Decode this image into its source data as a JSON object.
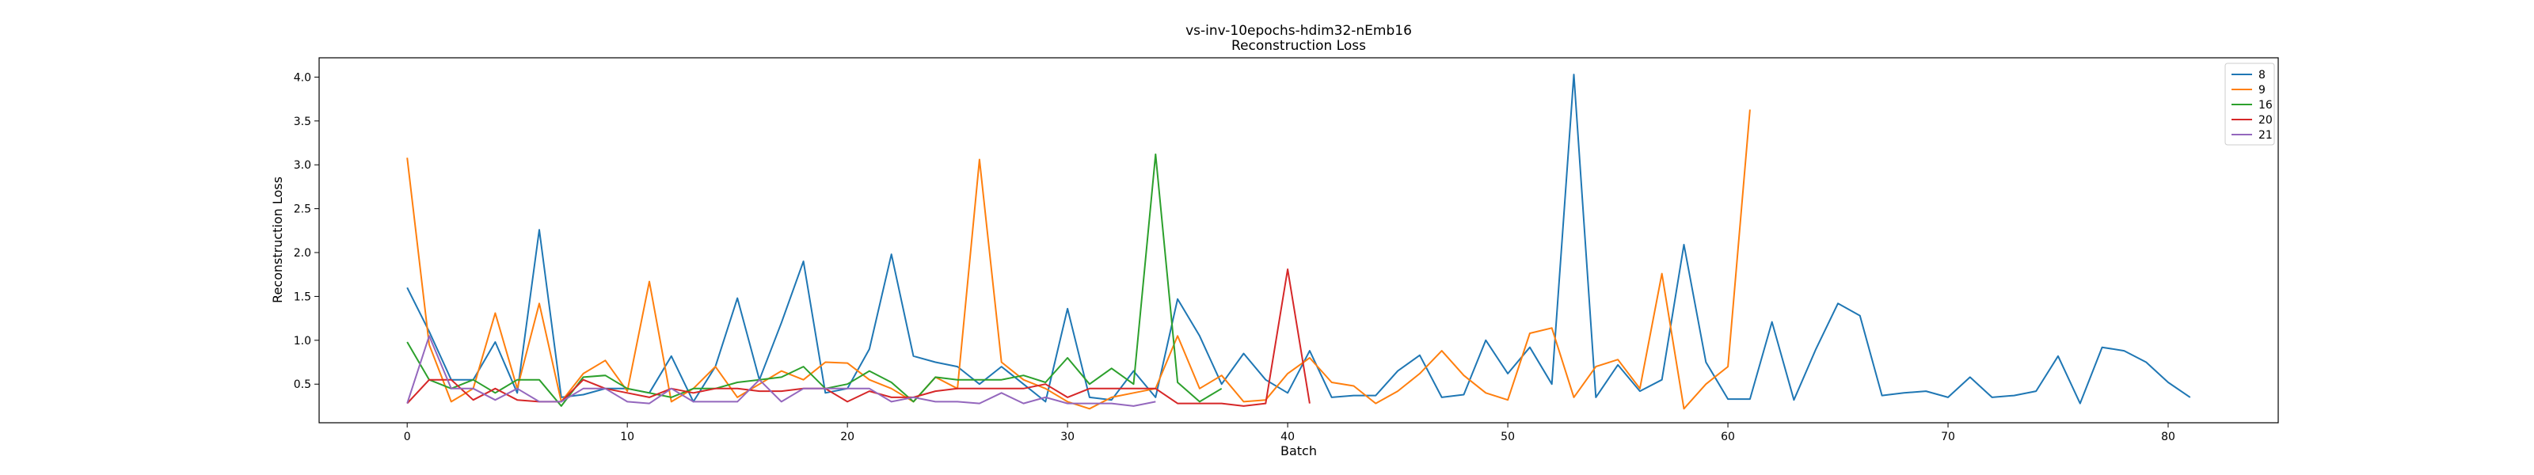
{
  "chart_data": {
    "type": "line",
    "title": "vs-inv-10epochs-hdim32-nEmb16",
    "subtitle": "Reconstruction Loss",
    "xlabel": "Batch",
    "ylabel": "Reconstruction Loss",
    "xlim": [
      -4,
      85
    ],
    "ylim": [
      0.06,
      4.22
    ],
    "xticks": [
      0,
      10,
      20,
      30,
      40,
      50,
      60,
      70,
      80
    ],
    "yticks": [
      0.5,
      1.0,
      1.5,
      2.0,
      2.5,
      3.0,
      3.5,
      4.0
    ],
    "ytick_labels": [
      "0.5",
      "1.0",
      "1.5",
      "2.0",
      "2.5",
      "3.0",
      "3.5",
      "4.0"
    ],
    "grid": false,
    "legend_position": "top-right",
    "series": [
      {
        "name": "8",
        "color": "#1f77b4",
        "values": [
          1.6,
          1.1,
          0.55,
          0.55,
          0.98,
          0.4,
          2.26,
          0.35,
          0.38,
          0.45,
          0.45,
          0.4,
          0.82,
          0.3,
          0.7,
          1.48,
          0.55,
          1.2,
          1.9,
          0.4,
          0.45,
          0.9,
          1.98,
          0.82,
          0.75,
          0.7,
          0.5,
          0.7,
          0.5,
          0.3,
          1.36,
          0.35,
          0.32,
          0.65,
          0.35,
          1.47,
          1.05,
          0.5,
          0.85,
          0.55,
          0.4,
          0.88,
          0.35,
          0.37,
          0.37,
          0.65,
          0.83,
          0.35,
          0.38,
          1.0,
          0.62,
          0.92,
          0.5,
          4.03,
          0.35,
          0.72,
          0.42,
          0.55,
          2.09,
          0.75,
          0.33,
          0.33,
          1.21,
          0.32,
          0.9,
          1.42,
          1.28,
          0.37,
          0.4,
          0.42,
          0.35,
          0.58,
          0.35,
          0.37,
          0.42,
          0.82,
          0.28,
          0.92,
          0.88,
          0.75,
          0.52,
          0.35
        ]
      },
      {
        "name": "9",
        "color": "#ff7f0e",
        "values": [
          3.08,
          0.95,
          0.3,
          0.45,
          1.31,
          0.45,
          1.42,
          0.3,
          0.62,
          0.77,
          0.42,
          1.67,
          0.3,
          0.45,
          0.7,
          0.35,
          0.5,
          0.65,
          0.55,
          0.75,
          0.74,
          0.55,
          0.45,
          0.3,
          0.58,
          0.45,
          3.06,
          0.75,
          0.55,
          0.45,
          0.3,
          0.22,
          0.35,
          0.4,
          0.45,
          1.05,
          0.45,
          0.6,
          0.3,
          0.32,
          0.62,
          0.8,
          0.52,
          0.48,
          0.28,
          0.42,
          0.62,
          0.88,
          0.6,
          0.4,
          0.32,
          1.08,
          1.14,
          0.35,
          0.7,
          0.78,
          0.45,
          1.76,
          0.22,
          0.5,
          0.7,
          3.63
        ]
      },
      {
        "name": "16",
        "color": "#2ca02c",
        "values": [
          0.98,
          0.55,
          0.45,
          0.55,
          0.4,
          0.55,
          0.55,
          0.25,
          0.58,
          0.6,
          0.45,
          0.4,
          0.35,
          0.45,
          0.45,
          0.52,
          0.55,
          0.58,
          0.7,
          0.45,
          0.5,
          0.65,
          0.52,
          0.3,
          0.58,
          0.55,
          0.55,
          0.55,
          0.6,
          0.52,
          0.8,
          0.5,
          0.68,
          0.5,
          3.12,
          0.52,
          0.3,
          0.45
        ]
      },
      {
        "name": "20",
        "color": "#d62728",
        "values": [
          0.28,
          0.55,
          0.55,
          0.32,
          0.45,
          0.32,
          0.3,
          0.3,
          0.55,
          0.45,
          0.4,
          0.35,
          0.45,
          0.4,
          0.45,
          0.45,
          0.42,
          0.42,
          0.45,
          0.45,
          0.3,
          0.42,
          0.35,
          0.35,
          0.42,
          0.45,
          0.45,
          0.45,
          0.45,
          0.5,
          0.35,
          0.45,
          0.45,
          0.45,
          0.45,
          0.28,
          0.28,
          0.28,
          0.25,
          0.28,
          1.81,
          0.28
        ]
      },
      {
        "name": "21",
        "color": "#9467bd",
        "values": [
          0.28,
          1.05,
          0.45,
          0.45,
          0.32,
          0.45,
          0.3,
          0.3,
          0.45,
          0.45,
          0.3,
          0.28,
          0.45,
          0.3,
          0.3,
          0.3,
          0.55,
          0.3,
          0.45,
          0.45,
          0.45,
          0.45,
          0.3,
          0.35,
          0.3,
          0.3,
          0.28,
          0.4,
          0.28,
          0.35,
          0.28,
          0.28,
          0.28,
          0.25,
          0.3
        ]
      }
    ]
  }
}
